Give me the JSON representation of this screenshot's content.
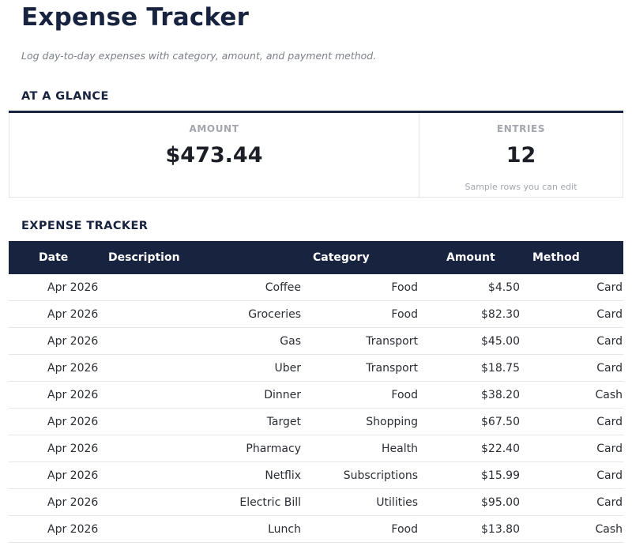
{
  "header": {
    "title": "Expense Tracker",
    "subtitle": "Log day-to-day expenses with category, amount, and payment method."
  },
  "glance": {
    "heading": "AT A GLANCE",
    "amount": {
      "label": "AMOUNT",
      "value": "$473.44"
    },
    "entries": {
      "label": "ENTRIES",
      "value": "12",
      "note": "Sample rows you can edit"
    }
  },
  "tracker": {
    "heading": "EXPENSE TRACKER",
    "columns": [
      "Date",
      "Description",
      "Category",
      "Amount",
      "Method"
    ],
    "rows": [
      {
        "date": "Apr 2026",
        "description": "Coffee",
        "category": "Food",
        "amount": "$4.50",
        "method": "Card"
      },
      {
        "date": "Apr 2026",
        "description": "Groceries",
        "category": "Food",
        "amount": "$82.30",
        "method": "Card"
      },
      {
        "date": "Apr 2026",
        "description": "Gas",
        "category": "Transport",
        "amount": "$45.00",
        "method": "Card"
      },
      {
        "date": "Apr 2026",
        "description": "Uber",
        "category": "Transport",
        "amount": "$18.75",
        "method": "Card"
      },
      {
        "date": "Apr 2026",
        "description": "Dinner",
        "category": "Food",
        "amount": "$38.20",
        "method": "Cash"
      },
      {
        "date": "Apr 2026",
        "description": "Target",
        "category": "Shopping",
        "amount": "$67.50",
        "method": "Card"
      },
      {
        "date": "Apr 2026",
        "description": "Pharmacy",
        "category": "Health",
        "amount": "$22.40",
        "method": "Card"
      },
      {
        "date": "Apr 2026",
        "description": "Netflix",
        "category": "Subscriptions",
        "amount": "$15.99",
        "method": "Card"
      },
      {
        "date": "Apr 2026",
        "description": "Electric Bill",
        "category": "Utilities",
        "amount": "$95.00",
        "method": "Card"
      },
      {
        "date": "Apr 2026",
        "description": "Lunch",
        "category": "Food",
        "amount": "$13.80",
        "method": "Cash"
      }
    ]
  },
  "colors": {
    "navy": "#17233f",
    "muted": "#a3a6ad",
    "border": "#e6e7ea"
  }
}
